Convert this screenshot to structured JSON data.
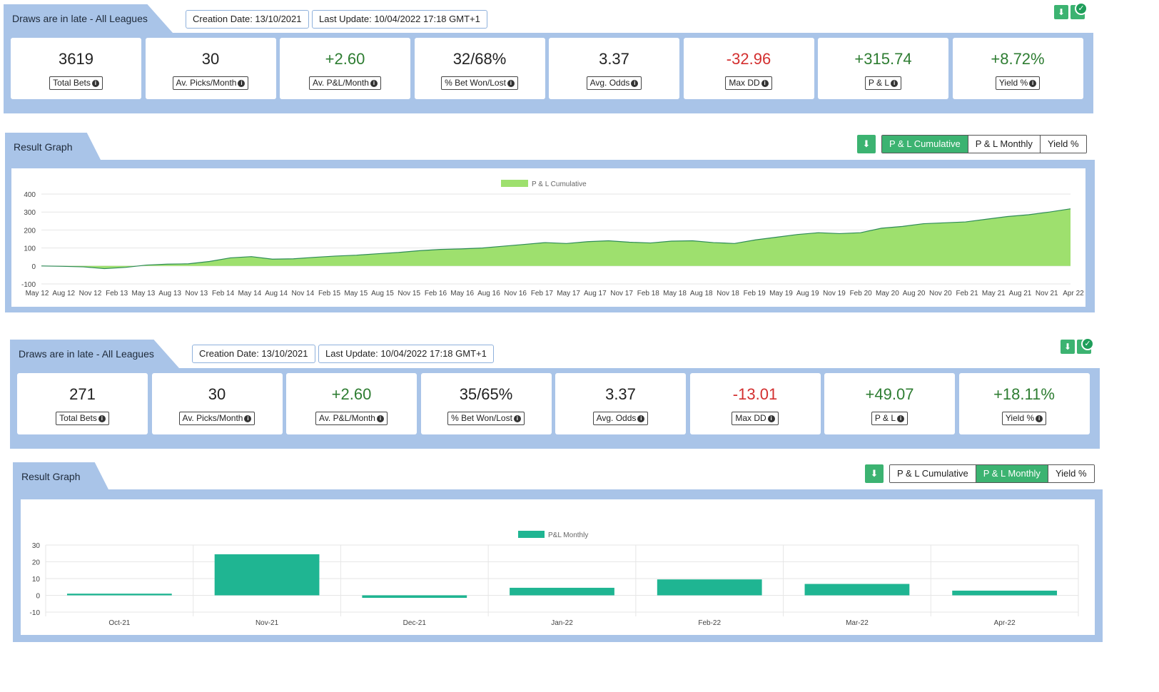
{
  "colors": {
    "band": "#a9c4e8",
    "green_btn": "#3cb371",
    "area_fill": "#9ee06e",
    "area_stroke": "#2e8b57",
    "bar_fill": "#1fb592",
    "pos": "#2e7d32",
    "neg": "#d32f2f"
  },
  "sections": [
    {
      "title": "Draws are in late - All Leagues",
      "creation": "Creation Date: 13/10/2021",
      "updated": "Last Update: 10/04/2022 17:18 GMT+1",
      "stats": [
        {
          "value": "3619",
          "label": "Total Bets",
          "tone": "neu"
        },
        {
          "value": "30",
          "label": "Av. Picks/Month",
          "tone": "neu"
        },
        {
          "value": "+2.60",
          "label": "Av. P&L/Month",
          "tone": "pos"
        },
        {
          "value": "32/68%",
          "label": "% Bet Won/Lost",
          "tone": "neu"
        },
        {
          "value": "3.37",
          "label": "Avg. Odds",
          "tone": "neu"
        },
        {
          "value": "-32.96",
          "label": "Max DD",
          "tone": "neg"
        },
        {
          "value": "+315.74",
          "label": "P & L",
          "tone": "pos"
        },
        {
          "value": "+8.72%",
          "label": "Yield %",
          "tone": "pos"
        }
      ],
      "graph_title": "Result Graph",
      "tabs": [
        "P & L Cumulative",
        "P & L Monthly",
        "Yield %"
      ],
      "active_tab": 0,
      "download_icon": "download-icon"
    },
    {
      "title": "Draws are in late - All Leagues",
      "creation": "Creation Date: 13/10/2021",
      "updated": "Last Update: 10/04/2022 17:18 GMT+1",
      "stats": [
        {
          "value": "271",
          "label": "Total Bets",
          "tone": "neu"
        },
        {
          "value": "30",
          "label": "Av. Picks/Month",
          "tone": "neu"
        },
        {
          "value": "+2.60",
          "label": "Av. P&L/Month",
          "tone": "pos"
        },
        {
          "value": "35/65%",
          "label": "% Bet Won/Lost",
          "tone": "neu"
        },
        {
          "value": "3.37",
          "label": "Avg. Odds",
          "tone": "neu"
        },
        {
          "value": "-13.01",
          "label": "Max DD",
          "tone": "neg"
        },
        {
          "value": "+49.07",
          "label": "P & L",
          "tone": "pos"
        },
        {
          "value": "+18.11%",
          "label": "Yield %",
          "tone": "pos"
        }
      ],
      "graph_title": "Result Graph",
      "tabs": [
        "P & L Cumulative",
        "P & L Monthly",
        "Yield %"
      ],
      "active_tab": 1,
      "download_icon": "download-icon"
    }
  ],
  "chart_data": [
    {
      "type": "area",
      "legend": "P & L Cumulative",
      "ylim": [
        -100,
        400
      ],
      "yticks": [
        400,
        300,
        200,
        100,
        0,
        -100
      ],
      "xticks": [
        "May 12",
        "Aug 12",
        "Nov 12",
        "Feb 13",
        "May 13",
        "Aug 13",
        "Nov 13",
        "Feb 14",
        "May 14",
        "Aug 14",
        "Nov 14",
        "Feb 15",
        "May 15",
        "Aug 15",
        "Nov 15",
        "Feb 16",
        "May 16",
        "Aug 16",
        "Nov 16",
        "Feb 17",
        "May 17",
        "Aug 17",
        "Nov 17",
        "Feb 18",
        "May 18",
        "Aug 18",
        "Nov 18",
        "Feb 19",
        "May 19",
        "Aug 19",
        "Nov 19",
        "Feb 20",
        "May 20",
        "Aug 20",
        "Nov 20",
        "Feb 21",
        "May 21",
        "Aug 21",
        "Nov 21",
        "Apr 22"
      ],
      "series": [
        {
          "values": [
            0,
            -2,
            -5,
            -15,
            -8,
            5,
            10,
            12,
            25,
            45,
            52,
            38,
            40,
            48,
            55,
            60,
            68,
            75,
            85,
            92,
            95,
            100,
            110,
            120,
            130,
            125,
            135,
            140,
            132,
            128,
            138,
            140,
            130,
            125,
            145,
            160,
            175,
            185,
            180,
            185,
            210,
            220,
            235,
            240,
            245,
            260,
            275,
            285,
            300,
            318
          ]
        }
      ]
    },
    {
      "type": "bar",
      "legend": "P&L Monthly",
      "ylim": [
        -10,
        30
      ],
      "yticks": [
        30,
        20,
        10,
        0,
        -10
      ],
      "categories": [
        "Oct-21",
        "Nov-21",
        "Dec-21",
        "Jan-22",
        "Feb-22",
        "Mar-22",
        "Apr-22"
      ],
      "series": [
        {
          "values": [
            1,
            24.5,
            -1.5,
            4.5,
            9.5,
            6.8,
            2.8
          ]
        }
      ]
    }
  ]
}
